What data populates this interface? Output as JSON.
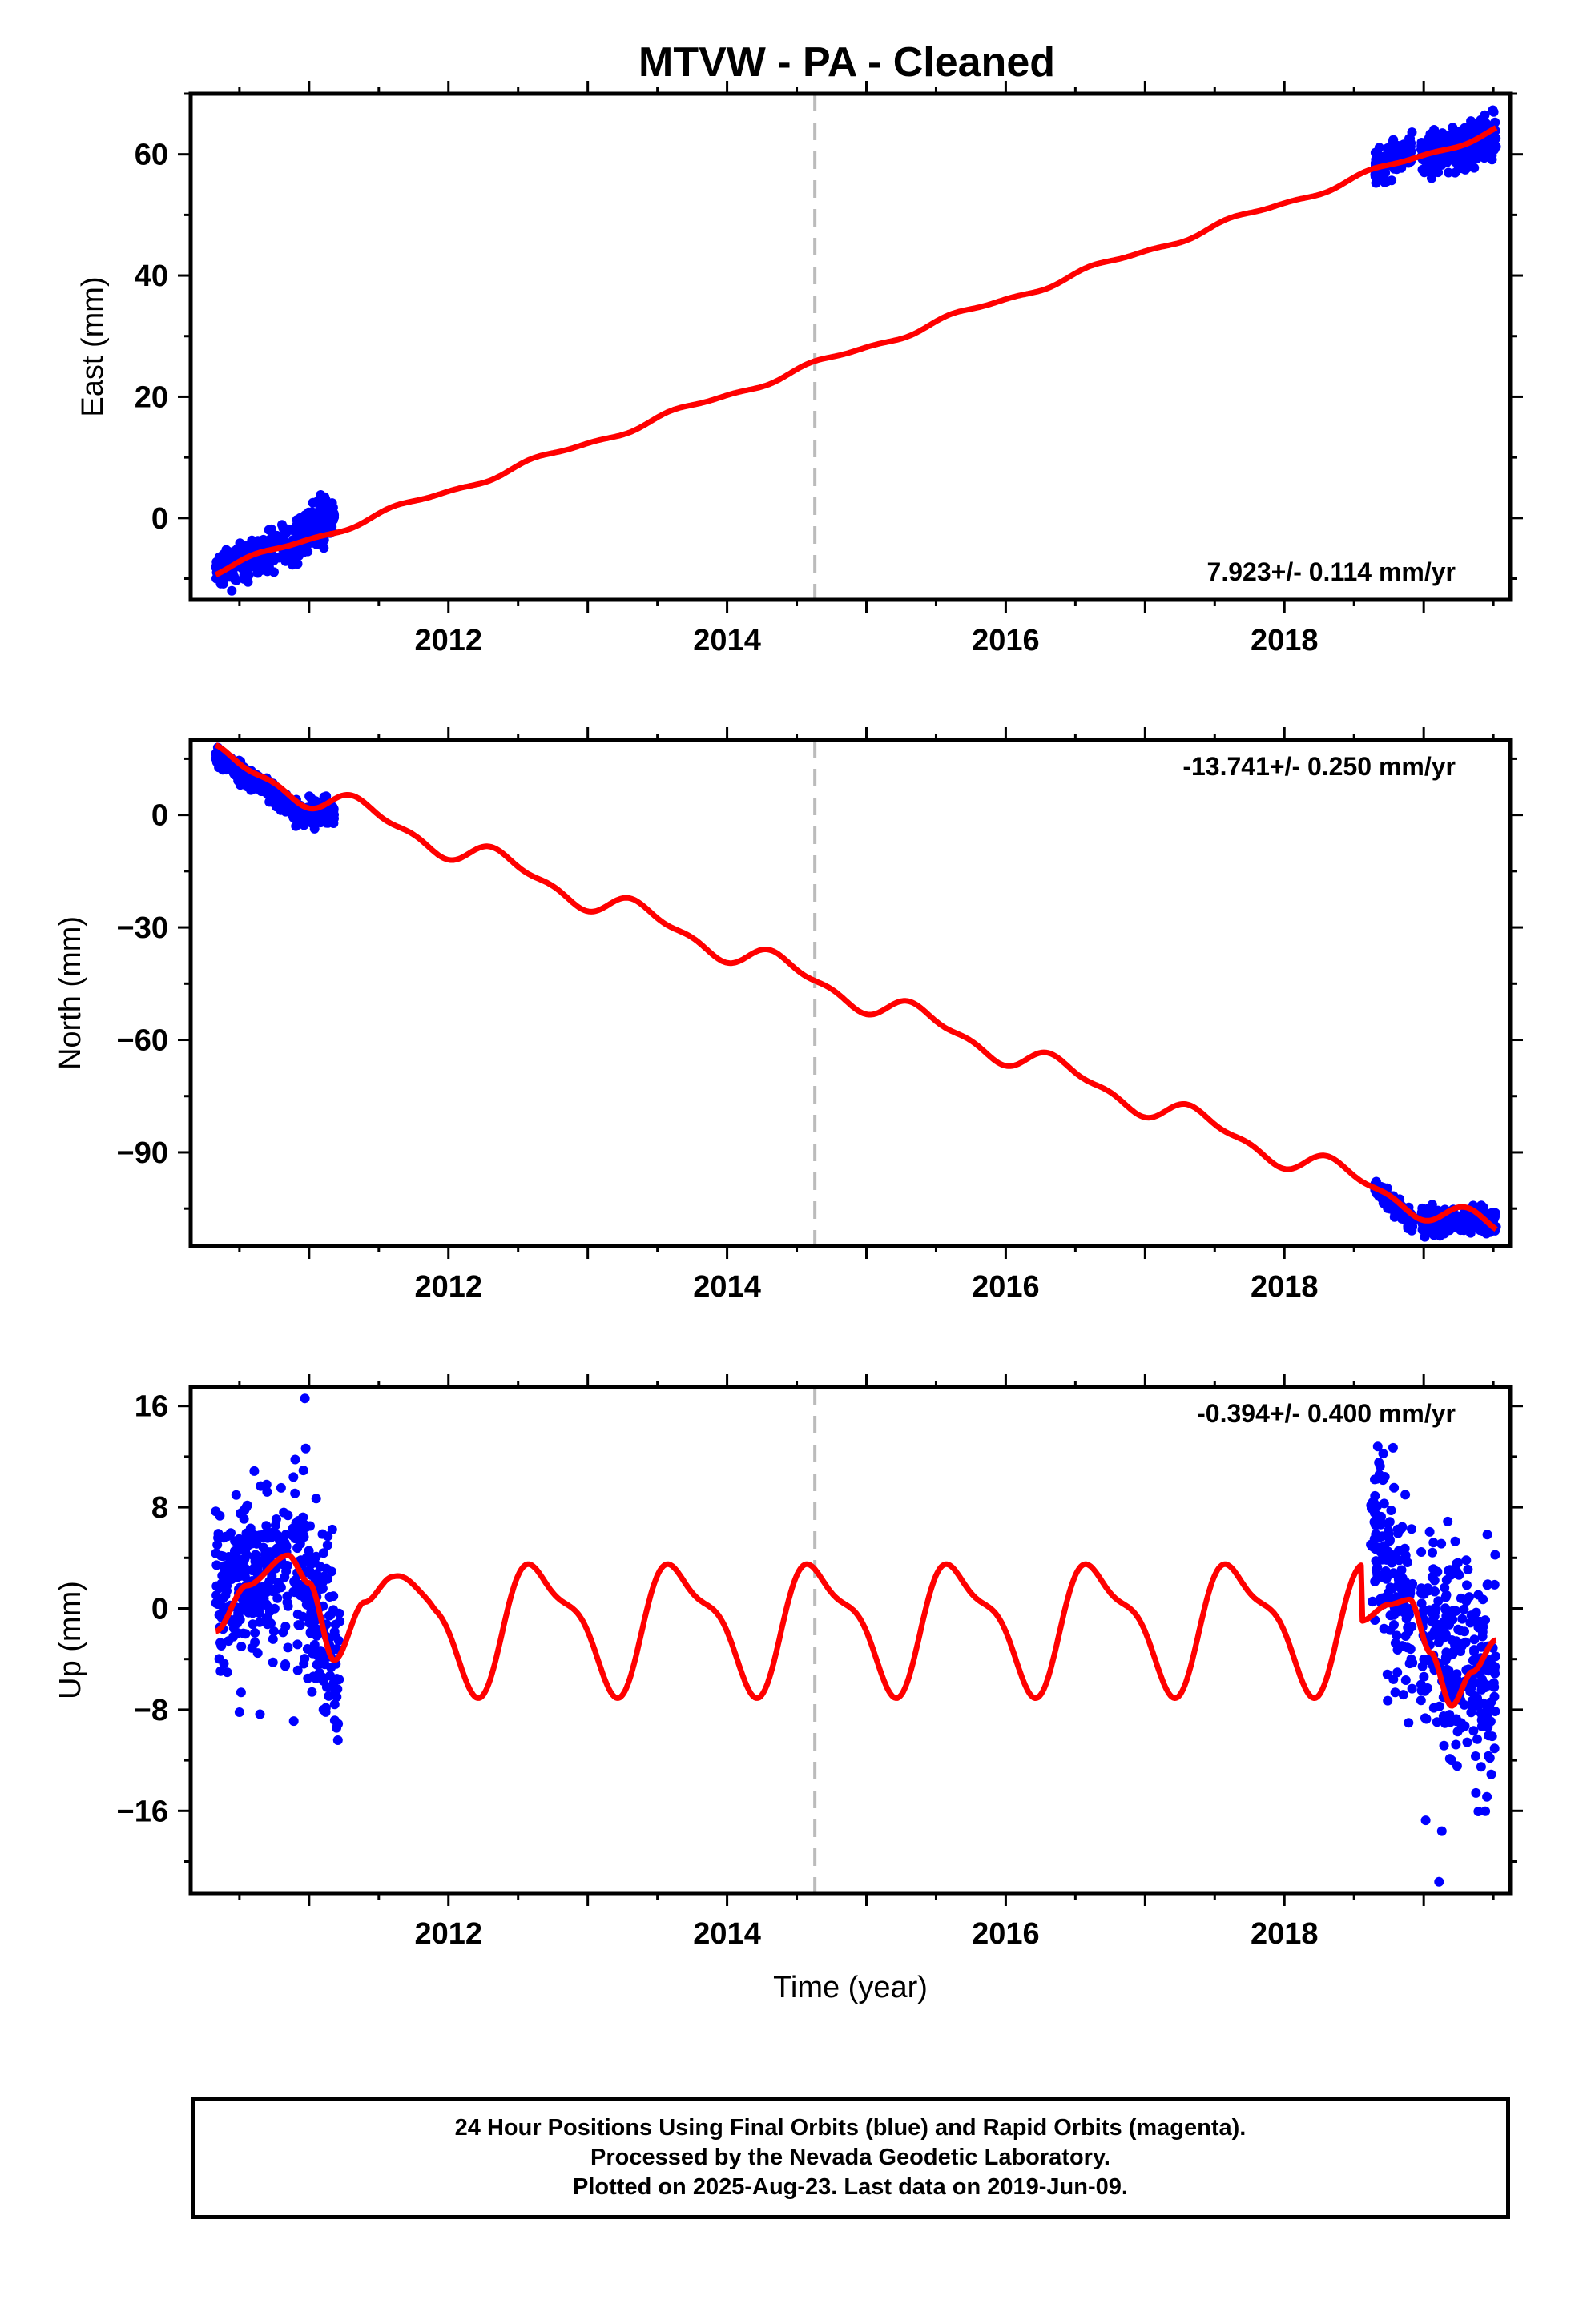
{
  "title": "MTVW  - PA - Cleaned",
  "colors": {
    "observations": "#0000ff",
    "model_fit": "#ff0000",
    "offset_marker": "#bbbbbb",
    "axes": "#000000"
  },
  "offset_marker_year": 2014.63,
  "chart_data": [
    {
      "type": "scatter",
      "id": "east",
      "ylabel": "East (mm)",
      "xlabel": "",
      "xlim": [
        2010.15,
        2019.62
      ],
      "ylim": [
        -13.5,
        70
      ],
      "yticks": [
        0,
        20,
        40,
        60
      ],
      "xticks": [
        2012,
        2014,
        2016,
        2018
      ],
      "rate_label": "7.923+/- 0.114 mm/yr",
      "rate_position": "bottom-right",
      "series": [
        {
          "style": "points",
          "color": "#0000ff",
          "segments": [
            {
              "x_start": 2010.33,
              "x_end": 2010.85,
              "y_start": -9.0,
              "y_end": -4.0,
              "spread": 1.4
            },
            {
              "x_start": 2010.88,
              "x_end": 2011.18,
              "y_start": -3.8,
              "y_end": 0.8,
              "spread": 1.8
            },
            {
              "x_start": 2018.65,
              "x_end": 2018.92,
              "y_start": 58.0,
              "y_end": 61.0,
              "spread": 1.4
            },
            {
              "x_start": 2018.98,
              "x_end": 2019.52,
              "y_start": 60.0,
              "y_end": 62.5,
              "spread": 1.8
            }
          ]
        },
        {
          "style": "line",
          "color": "#ff0000",
          "base_year": 2010.33,
          "base_value": -8.8,
          "rate": 7.923,
          "seasonal_amp": 1.0,
          "seasonal_phase": 0.45
        }
      ]
    },
    {
      "type": "scatter",
      "id": "north",
      "ylabel": "North (mm)",
      "xlabel": "",
      "xlim": [
        2010.15,
        2019.62
      ],
      "ylim": [
        -115,
        20
      ],
      "yticks": [
        0,
        -30,
        -60,
        -90
      ],
      "yticklabels": [
        "0",
        "−30",
        "−60",
        "−90"
      ],
      "xticks": [
        2012,
        2014,
        2016,
        2018
      ],
      "rate_label": "-13.741+/- 0.250 mm/yr",
      "rate_position": "top-right",
      "series": [
        {
          "style": "points",
          "color": "#0000ff",
          "segments": [
            {
              "x_start": 2010.33,
              "x_end": 2010.85,
              "y_start": 15.5,
              "y_end": 3.0,
              "spread": 1.2
            },
            {
              "x_start": 2010.88,
              "x_end": 2011.18,
              "y_start": 1.0,
              "y_end": 0.5,
              "spread": 1.6
            },
            {
              "x_start": 2018.65,
              "x_end": 2018.92,
              "y_start": -99.0,
              "y_end": -109.0,
              "spread": 1.2
            },
            {
              "x_start": 2018.98,
              "x_end": 2019.52,
              "y_start": -108.5,
              "y_end": -108.0,
              "spread": 1.6
            }
          ]
        },
        {
          "style": "line",
          "color": "#ff0000",
          "base_year": 2010.33,
          "base_value": 14.8,
          "rate": -13.741,
          "seasonal_amp": 6.2,
          "seasonal_phase": 0.15
        }
      ]
    },
    {
      "type": "scatter",
      "id": "up",
      "ylabel": "Up (mm)",
      "xlabel": "Time (year)",
      "xlim": [
        2010.15,
        2019.62
      ],
      "ylim": [
        -22.5,
        17.5
      ],
      "yticks": [
        16,
        8,
        0,
        -8,
        -16
      ],
      "yticklabels": [
        "16",
        "8",
        "0",
        "−8",
        "−16"
      ],
      "xticks": [
        2012,
        2014,
        2016,
        2018
      ],
      "rate_label": "-0.394+/- 0.400 mm/yr",
      "rate_position": "top-right",
      "series": [
        {
          "style": "points",
          "color": "#0000ff",
          "segments": [
            {
              "x_start": 2010.33,
              "x_end": 2010.85,
              "y_start": 1.5,
              "y_end": 3.5,
              "spread": 3.0
            },
            {
              "x_start": 2010.88,
              "x_end": 2011.22,
              "y_start": 3.5,
              "y_end": -4.0,
              "spread": 3.4
            },
            {
              "x_start": 2018.62,
              "x_end": 2018.92,
              "y_start": 6.0,
              "y_end": -1.0,
              "spread": 3.5
            },
            {
              "x_start": 2018.98,
              "x_end": 2019.52,
              "y_start": -3.0,
              "y_end": -6.0,
              "spread": 4.2
            }
          ],
          "notable_points": [
            [
              2010.97,
              16.6
            ],
            [
              2018.67,
              12.8
            ],
            [
              2018.78,
              12.7
            ],
            [
              2019.11,
              -21.6
            ],
            [
              2019.13,
              -17.6
            ],
            [
              2010.89,
              -8.9
            ],
            [
              2010.5,
              -8.2
            ]
          ]
        },
        {
          "style": "line",
          "color": "#ff0000",
          "seasonal_amp": 4.6,
          "seasonal_phase": 0.42,
          "knots": [
            [
              2010.33,
              -1.8
            ],
            [
              2010.55,
              1.8
            ],
            [
              2010.85,
              4.2
            ],
            [
              2011.0,
              2.0
            ],
            [
              2011.18,
              -4.1
            ],
            [
              2011.4,
              0.5
            ],
            [
              2011.6,
              2.5
            ]
          ],
          "knots_end": [
            [
              2018.55,
              -1.0
            ],
            [
              2018.75,
              0.3
            ],
            [
              2018.9,
              0.7
            ],
            [
              2019.05,
              -3.5
            ],
            [
              2019.2,
              -7.7
            ],
            [
              2019.35,
              -5.0
            ],
            [
              2019.52,
              -2.5
            ]
          ]
        }
      ]
    }
  ],
  "footer": {
    "line1": "24 Hour Positions Using Final Orbits (blue) and Rapid Orbits (magenta).",
    "line2": "Processed by the Nevada Geodetic Laboratory.",
    "line3": "Plotted on 2025-Aug-23. Last data on 2019-Jun-09."
  }
}
